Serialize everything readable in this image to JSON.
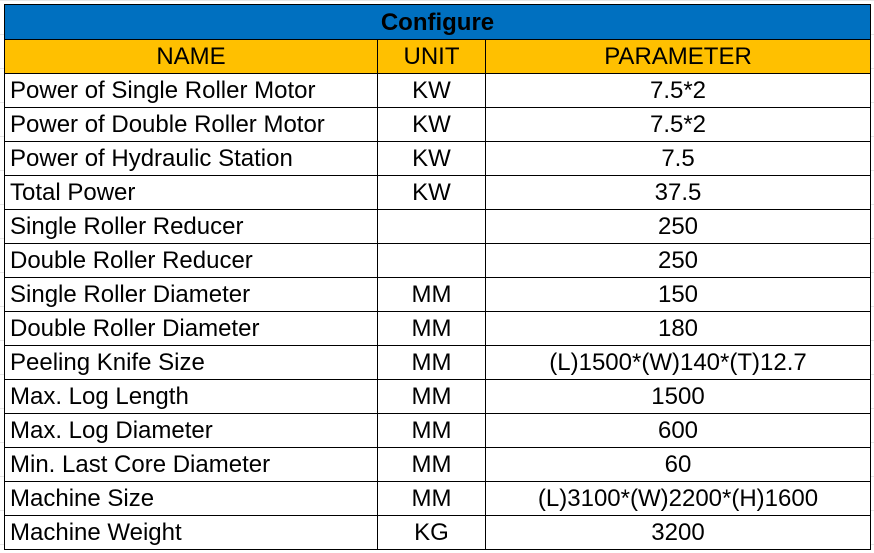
{
  "title": "Configure",
  "colors": {
    "title_bg": "#0070C0",
    "header_bg": "#FFC000"
  },
  "headers": [
    "NAME",
    "UNIT",
    "PARAMETER"
  ],
  "rows": [
    {
      "name": "Power of Single Roller Motor",
      "unit": "KW",
      "parameter": "7.5*2"
    },
    {
      "name": "Power of Double Roller Motor",
      "unit": "KW",
      "parameter": "7.5*2"
    },
    {
      "name": "Power of Hydraulic Station",
      "unit": "KW",
      "parameter": "7.5"
    },
    {
      "name": "Total Power",
      "unit": "KW",
      "parameter": "37.5"
    },
    {
      "name": "Single Roller Reducer",
      "unit": "",
      "parameter": "250"
    },
    {
      "name": "Double Roller Reducer",
      "unit": "",
      "parameter": "250"
    },
    {
      "name": "Single Roller Diameter",
      "unit": "MM",
      "parameter": "150"
    },
    {
      "name": "Double Roller Diameter",
      "unit": "MM",
      "parameter": "180"
    },
    {
      "name": "Peeling Knife Size",
      "unit": "MM",
      "parameter": "(L)1500*(W)140*(T)12.7"
    },
    {
      "name": "Max. Log Length",
      "unit": "MM",
      "parameter": "1500"
    },
    {
      "name": "Max. Log Diameter",
      "unit": "MM",
      "parameter": "600"
    },
    {
      "name": "Min. Last Core Diameter",
      "unit": "MM",
      "parameter": "60"
    },
    {
      "name": "Machine Size",
      "unit": "MM",
      "parameter": "(L)3100*(W)2200*(H)1600"
    },
    {
      "name": "Machine Weight",
      "unit": "KG",
      "parameter": "3200"
    }
  ]
}
